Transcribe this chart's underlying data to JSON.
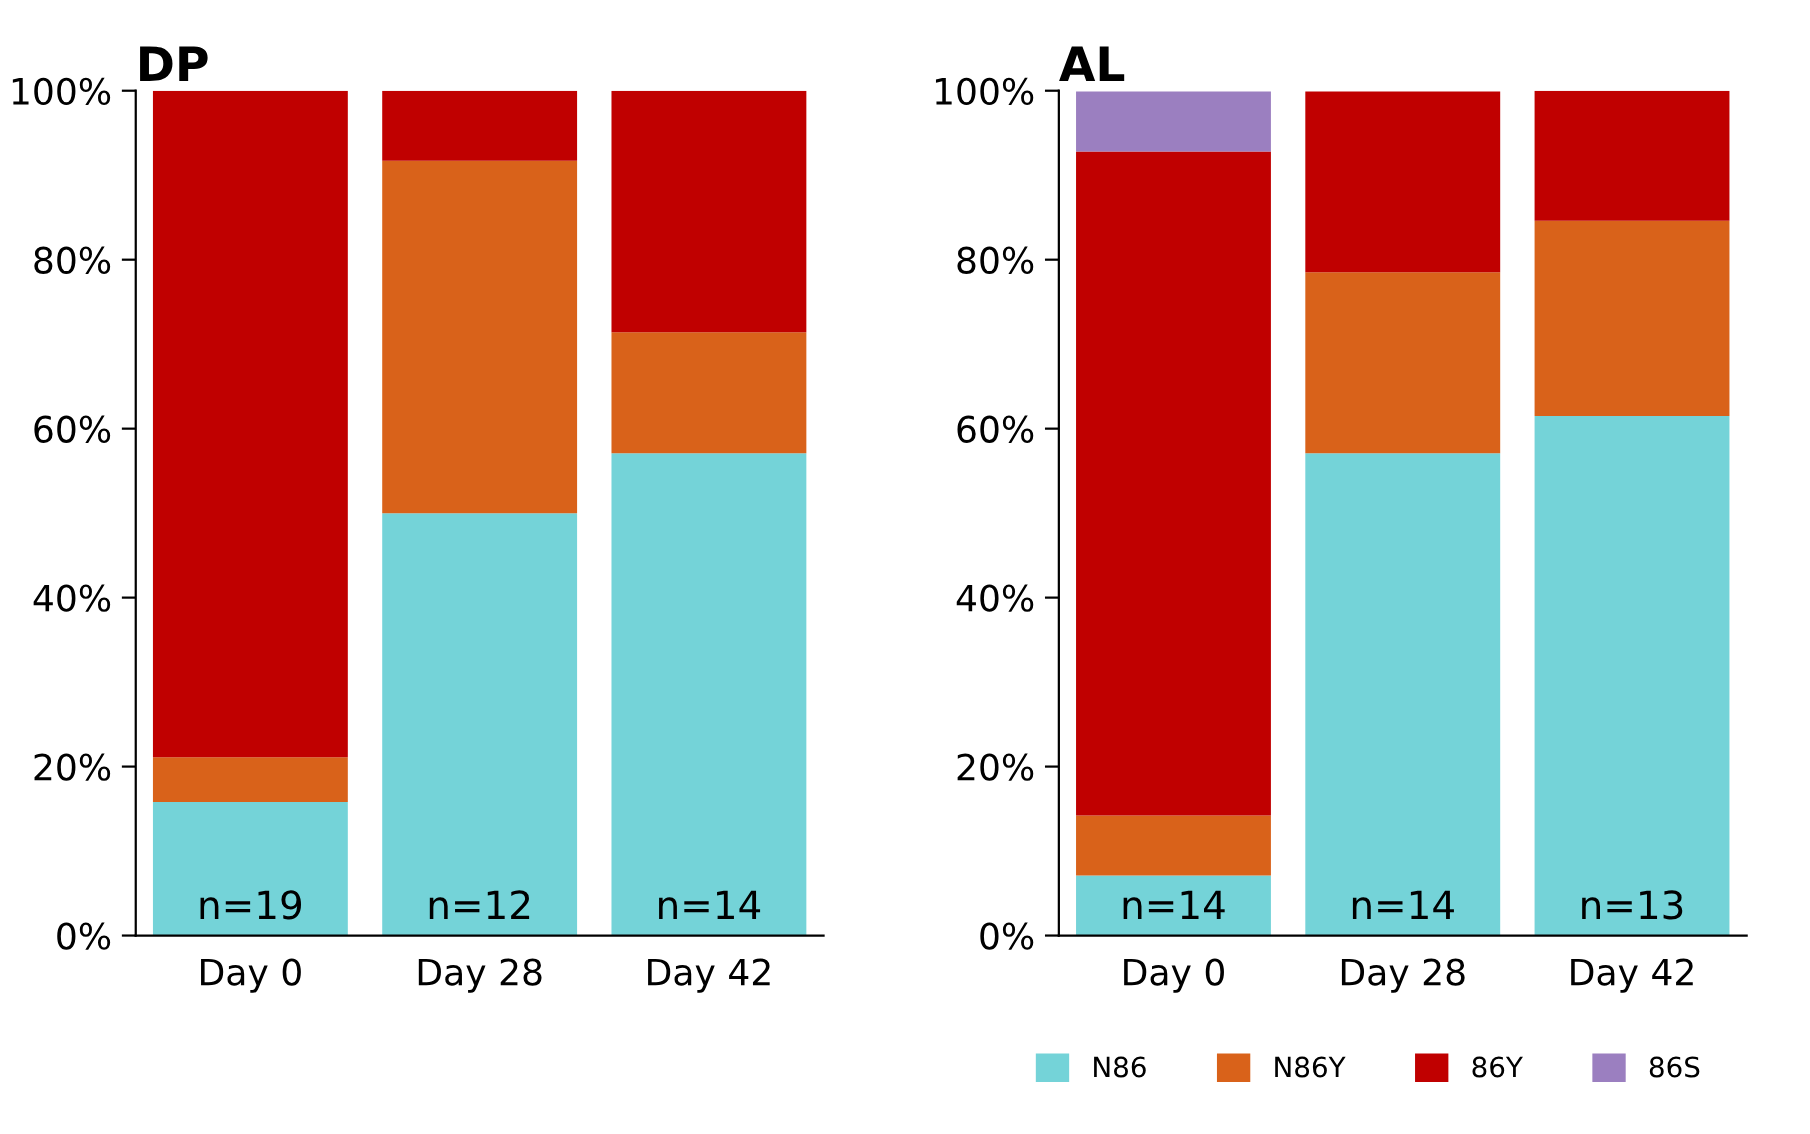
{
  "chart_data": [
    {
      "type": "bar",
      "title": "DP",
      "stacked": true,
      "categories": [
        "Day 0",
        "Day 28",
        "Day 42"
      ],
      "ylim": [
        0,
        100
      ],
      "yticks": [
        {
          "value": 0,
          "label": "0%"
        },
        {
          "value": 20,
          "label": "20%"
        },
        {
          "value": 40,
          "label": "40%"
        },
        {
          "value": 60,
          "label": "60%"
        },
        {
          "value": 80,
          "label": "80%"
        },
        {
          "value": 100,
          "label": "100%"
        }
      ],
      "grid": false,
      "legend": false,
      "series": [
        {
          "color": "#74d3d8",
          "values": [
            15.8,
            50.0,
            57.1
          ]
        },
        {
          "color": "#d9621a",
          "values": [
            5.3,
            41.7,
            14.3
          ]
        },
        {
          "color": "#c00000",
          "values": [
            78.9,
            8.3,
            28.6
          ]
        }
      ],
      "annotations": [
        "n=19",
        "n=12",
        "n=14"
      ]
    },
    {
      "type": "bar",
      "title": "AL",
      "stacked": true,
      "categories": [
        "Day 0",
        "Day 28",
        "Day 42"
      ],
      "ylim": [
        0,
        100
      ],
      "yticks": [
        {
          "value": 0,
          "label": "0%"
        },
        {
          "value": 20,
          "label": "20%"
        },
        {
          "value": 40,
          "label": "40%"
        },
        {
          "value": 60,
          "label": "60%"
        },
        {
          "value": 80,
          "label": "80%"
        },
        {
          "value": 100,
          "label": "100%"
        }
      ],
      "grid": false,
      "legend": "bottom",
      "series": [
        {
          "name": "N86",
          "color": "#74d3d8",
          "values": [
            7.1,
            57.1,
            61.5
          ]
        },
        {
          "name": "N86Y",
          "color": "#d9621a",
          "values": [
            7.1,
            21.4,
            23.1
          ]
        },
        {
          "name": "86Y",
          "color": "#c00000",
          "values": [
            78.6,
            21.4,
            15.4
          ]
        },
        {
          "name": "86S",
          "color": "#9b7fc0",
          "values": [
            7.1,
            0,
            0
          ]
        }
      ],
      "annotations": [
        "n=14",
        "n=14",
        "n=13"
      ]
    }
  ]
}
